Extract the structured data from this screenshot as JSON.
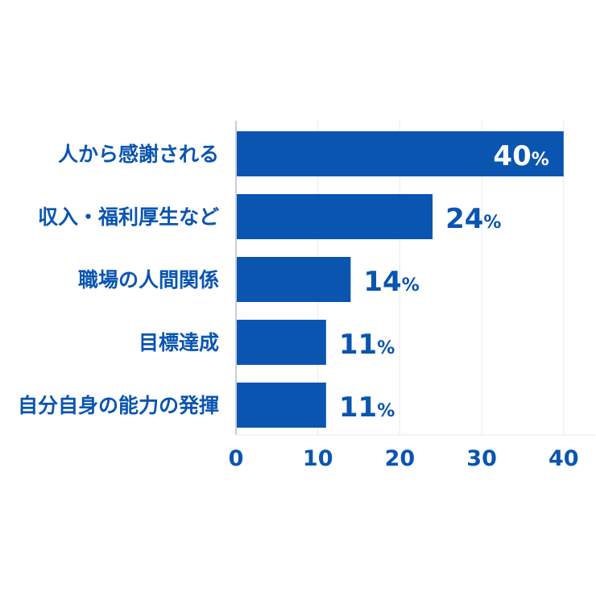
{
  "chart_data": {
    "type": "bar",
    "orientation": "horizontal",
    "categories": [
      "人から感謝される",
      "収入・福利厚生など",
      "職場の人間関係",
      "目標達成",
      "自分自身の能力の発揮"
    ],
    "values": [
      40,
      24,
      14,
      11,
      11
    ],
    "value_labels": [
      "40",
      "24",
      "14",
      "11",
      "11"
    ],
    "unit": "%",
    "xlim": [
      0,
      43
    ],
    "xticks": [
      0,
      10,
      20,
      30,
      40
    ],
    "grid": true,
    "legend": "none",
    "title": "",
    "xlabel": "",
    "ylabel": ""
  },
  "colors": {
    "bar": "#0a55b0",
    "text": "#0a55b0",
    "inner_label": "#ffffff",
    "grid": "#e6e9f0",
    "axis": "#c9ced8"
  }
}
